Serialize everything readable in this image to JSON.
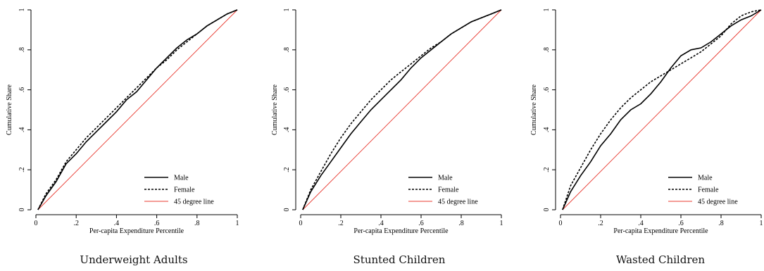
{
  "chart_data": [
    {
      "type": "line",
      "title": "Underweight Adults",
      "xlabel": "Per-capita Expenditure Percentile",
      "ylabel": "Cumulative Share",
      "xlim": [
        0,
        1
      ],
      "ylim": [
        0,
        1
      ],
      "x_ticks": [
        "0",
        ".2",
        ".4",
        ".6",
        ".8",
        "1"
      ],
      "y_ticks": [
        "0",
        ".2",
        ".4",
        ".6",
        ".8",
        "1"
      ],
      "legend_position": "bottom-right",
      "series": [
        {
          "name": "Male",
          "style": "solid",
          "color": "#000000",
          "x": [
            0.01,
            0.05,
            0.1,
            0.15,
            0.2,
            0.25,
            0.3,
            0.35,
            0.4,
            0.45,
            0.5,
            0.55,
            0.6,
            0.65,
            0.7,
            0.75,
            0.8,
            0.85,
            0.9,
            0.95,
            1.0
          ],
          "y": [
            0.0,
            0.07,
            0.14,
            0.23,
            0.28,
            0.34,
            0.39,
            0.44,
            0.49,
            0.55,
            0.59,
            0.65,
            0.71,
            0.76,
            0.81,
            0.85,
            0.88,
            0.92,
            0.95,
            0.98,
            1.0
          ]
        },
        {
          "name": "Female",
          "style": "dashed",
          "color": "#000000",
          "x": [
            0.01,
            0.05,
            0.1,
            0.15,
            0.2,
            0.25,
            0.3,
            0.35,
            0.4,
            0.45,
            0.5,
            0.55,
            0.6,
            0.65,
            0.7,
            0.75,
            0.8,
            0.85,
            0.9,
            0.95,
            1.0
          ],
          "y": [
            0.0,
            0.08,
            0.15,
            0.24,
            0.3,
            0.36,
            0.41,
            0.46,
            0.51,
            0.56,
            0.61,
            0.66,
            0.71,
            0.75,
            0.8,
            0.84,
            0.88,
            0.92,
            0.95,
            0.98,
            1.0
          ]
        },
        {
          "name": "45 degree line",
          "style": "solid",
          "color": "#e8382f",
          "x": [
            0.01,
            1.0
          ],
          "y": [
            0.0,
            1.0
          ]
        }
      ]
    },
    {
      "type": "line",
      "title": "Stunted Children",
      "xlabel": "Per-capita Expenditure Percentile",
      "ylabel": "Cumulative Share",
      "xlim": [
        0,
        1
      ],
      "ylim": [
        0,
        1
      ],
      "x_ticks": [
        "0",
        ".2",
        ".4",
        ".6",
        ".8",
        "1"
      ],
      "y_ticks": [
        "0",
        ".2",
        ".4",
        ".6",
        ".8",
        "1"
      ],
      "legend_position": "bottom-right",
      "series": [
        {
          "name": "Male",
          "style": "solid",
          "color": "#000000",
          "x": [
            0.01,
            0.05,
            0.1,
            0.15,
            0.2,
            0.25,
            0.3,
            0.35,
            0.4,
            0.45,
            0.5,
            0.55,
            0.6,
            0.65,
            0.7,
            0.75,
            0.8,
            0.85,
            0.9,
            0.95,
            1.0
          ],
          "y": [
            0.0,
            0.09,
            0.17,
            0.24,
            0.31,
            0.38,
            0.44,
            0.5,
            0.55,
            0.6,
            0.65,
            0.71,
            0.76,
            0.8,
            0.84,
            0.88,
            0.91,
            0.94,
            0.96,
            0.98,
            1.0
          ]
        },
        {
          "name": "Female",
          "style": "dashed",
          "color": "#000000",
          "x": [
            0.01,
            0.05,
            0.1,
            0.15,
            0.2,
            0.25,
            0.3,
            0.35,
            0.4,
            0.45,
            0.5,
            0.55,
            0.6,
            0.65,
            0.7,
            0.75,
            0.8,
            0.85,
            0.9,
            0.95,
            1.0
          ],
          "y": [
            0.0,
            0.1,
            0.19,
            0.28,
            0.36,
            0.43,
            0.49,
            0.55,
            0.6,
            0.65,
            0.69,
            0.73,
            0.77,
            0.81,
            0.84,
            0.88,
            0.91,
            0.94,
            0.96,
            0.98,
            1.0
          ]
        },
        {
          "name": "45 degree line",
          "style": "solid",
          "color": "#e8382f",
          "x": [
            0.01,
            1.0
          ],
          "y": [
            0.0,
            1.0
          ]
        }
      ]
    },
    {
      "type": "line",
      "title": "Wasted Children",
      "xlabel": "Per-capita Expenditure Percentile",
      "ylabel": "Cumulative Share",
      "xlim": [
        0,
        1
      ],
      "ylim": [
        0,
        1
      ],
      "x_ticks": [
        "0",
        ".2",
        ".4",
        ".6",
        ".8",
        "1"
      ],
      "y_ticks": [
        "0",
        ".2",
        ".4",
        ".6",
        ".8",
        "1"
      ],
      "legend_position": "bottom-right",
      "series": [
        {
          "name": "Male",
          "style": "solid",
          "color": "#000000",
          "x": [
            0.01,
            0.05,
            0.1,
            0.15,
            0.2,
            0.25,
            0.3,
            0.35,
            0.4,
            0.45,
            0.5,
            0.55,
            0.6,
            0.65,
            0.7,
            0.75,
            0.8,
            0.85,
            0.9,
            0.95,
            1.0
          ],
          "y": [
            0.0,
            0.09,
            0.17,
            0.24,
            0.32,
            0.38,
            0.45,
            0.5,
            0.53,
            0.58,
            0.64,
            0.71,
            0.77,
            0.8,
            0.81,
            0.84,
            0.88,
            0.92,
            0.95,
            0.97,
            1.0
          ]
        },
        {
          "name": "Female",
          "style": "dashed",
          "color": "#000000",
          "x": [
            0.01,
            0.05,
            0.1,
            0.15,
            0.2,
            0.25,
            0.3,
            0.35,
            0.4,
            0.45,
            0.5,
            0.55,
            0.6,
            0.65,
            0.7,
            0.75,
            0.8,
            0.85,
            0.9,
            0.95,
            1.0
          ],
          "y": [
            0.0,
            0.12,
            0.21,
            0.3,
            0.38,
            0.45,
            0.51,
            0.56,
            0.6,
            0.64,
            0.67,
            0.7,
            0.73,
            0.76,
            0.79,
            0.83,
            0.87,
            0.93,
            0.97,
            0.99,
            1.0
          ]
        },
        {
          "name": "45 degree line",
          "style": "solid",
          "color": "#e8382f",
          "x": [
            0.01,
            1.0
          ],
          "y": [
            0.0,
            1.0
          ]
        }
      ]
    }
  ]
}
